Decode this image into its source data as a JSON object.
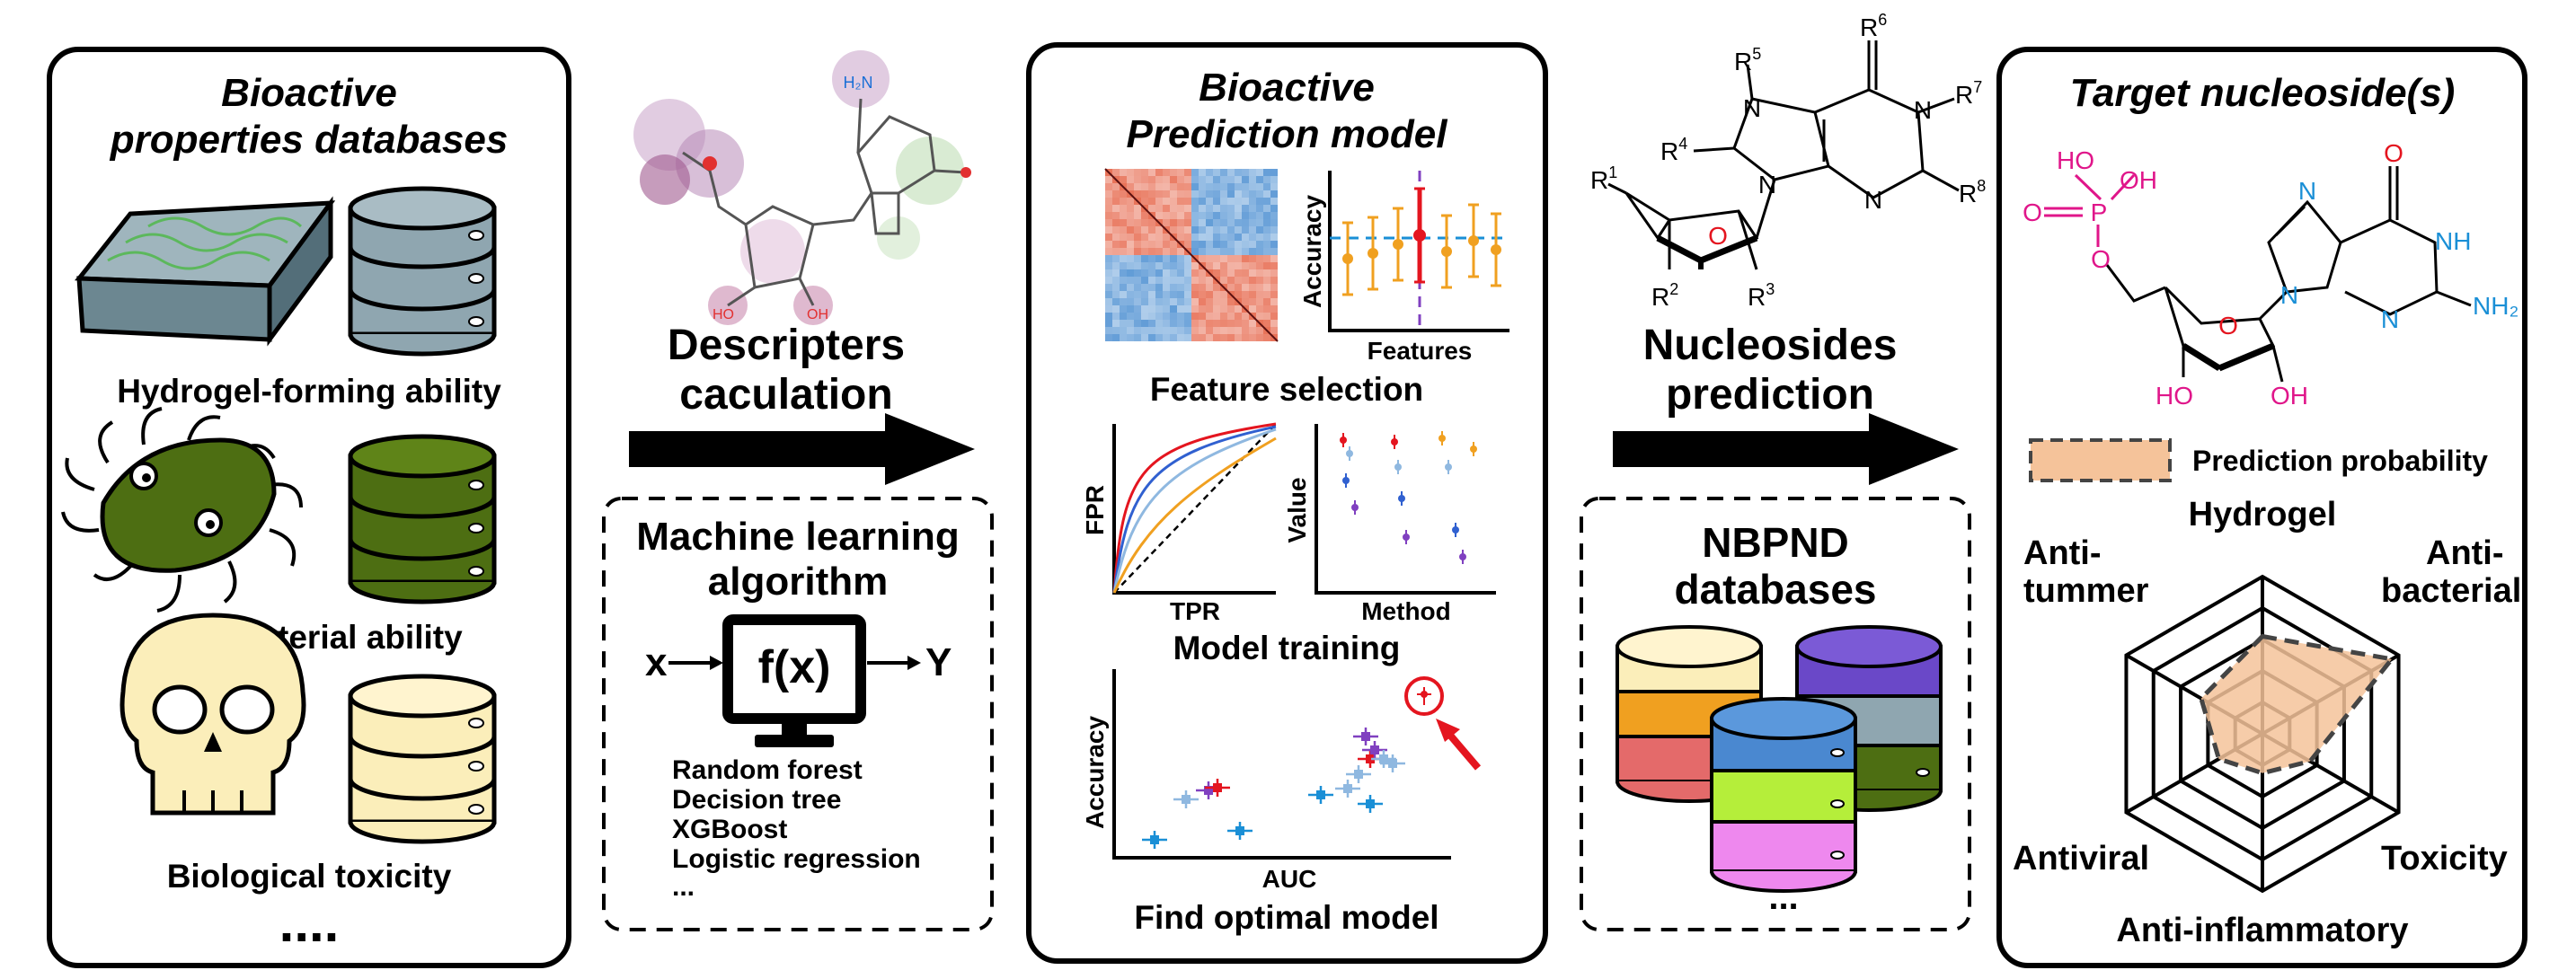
{
  "colors": {
    "hydrogel_db": "#8fa6b0",
    "antibacterial_db": "#4d6e12",
    "toxicity_db": "#fbeeba",
    "accent_red": "#e4151f",
    "orange": "#f0a020",
    "magenta": "#e0168a",
    "blue": "#1a8fd6",
    "radar_fill": "#f5c39a"
  },
  "panel1": {
    "title_line1": "Bioactive",
    "title_line2": "properties databases",
    "db1_label": "Hydrogel-forming ability",
    "db2_label": "Antibacterial ability",
    "db3_label": "Biological toxicity",
    "more": "...."
  },
  "step1": {
    "label_line1": "Descripters",
    "label_line2": "caculation",
    "atom_label_h2n": "H₂N",
    "atom_label_ho1": "HO",
    "atom_label_oh2": "OH"
  },
  "ml_box": {
    "title_line1": "Machine learning",
    "title_line2": "algorithm",
    "x_label": "x",
    "fx_label": "f(x)",
    "y_label": "Y",
    "algorithms": [
      "Random forest",
      "Decision tree",
      "XGBoost",
      "Logistic regression",
      "..."
    ]
  },
  "panel2": {
    "title_line1": "Bioactive",
    "title_line2": "Prediction model",
    "accuracy_plot": {
      "ylabel": "Accuracy",
      "xlabel": "Features"
    },
    "feature_selection": "Feature selection",
    "roc_plot": {
      "ylabel": "FPR",
      "xlabel": "TPR"
    },
    "value_plot": {
      "ylabel": "Value",
      "xlabel": "Method"
    },
    "model_training": "Model training",
    "scatter_plot": {
      "ylabel": "Accuracy",
      "xlabel": "AUC"
    },
    "find_optimal": "Find optimal model"
  },
  "step2": {
    "label_line1": "Nucleosides",
    "label_line2": "prediction",
    "r1": "R",
    "r1_sup": "1",
    "r2": "R",
    "r2_sup": "2",
    "r3": "R",
    "r3_sup": "3",
    "r4": "R",
    "r4_sup": "4",
    "r5": "R",
    "r5_sup": "5",
    "r6": "R",
    "r6_sup": "6",
    "r7": "R",
    "r7_sup": "7",
    "r8": "R",
    "r8_sup": "8",
    "ring_n": "N",
    "ring_o": "O"
  },
  "nbpnd": {
    "title_line1": "NBPND",
    "title_line2": "databases",
    "more": "..."
  },
  "panel3": {
    "title": "Target nucleoside(s)",
    "atoms": {
      "ho": "HO",
      "oh": "OH",
      "o_dbl": "O",
      "p": "P",
      "o_link": "O",
      "o_top": "O",
      "nh": "NH",
      "nh2": "NH₂",
      "n": "N",
      "ring_o": "O",
      "ho_bottom": "HO",
      "oh_bottom": "OH"
    },
    "legend": "Prediction probability",
    "radar_axes": [
      "Hydrogel",
      "Anti-\nbacterial",
      "Toxicity",
      "Anti-inflammatory",
      "Antiviral",
      "Anti-\ntummer"
    ],
    "radar_labels": {
      "top": "Hydrogel",
      "upper_right_1": "Anti-",
      "upper_right_2": "bacterial",
      "lower_right": "Toxicity",
      "bottom": "Anti-inflammatory",
      "lower_left": "Antiviral",
      "upper_left_1": "Anti-",
      "upper_left_2": "tummer"
    },
    "radar_values": [
      0.62,
      0.95,
      0.35,
      0.25,
      0.32,
      0.45
    ]
  }
}
